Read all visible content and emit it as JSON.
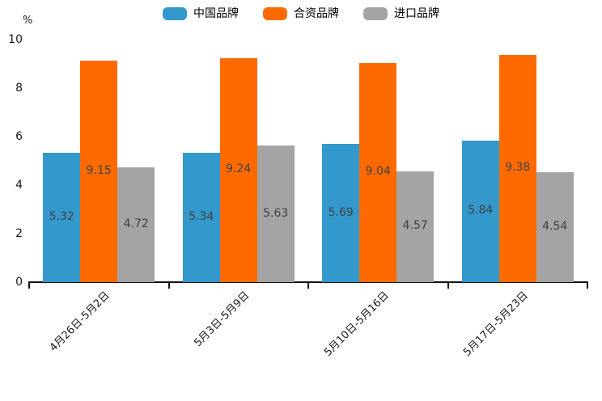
{
  "chart_data": {
    "type": "bar",
    "title": "",
    "xlabel": "",
    "ylabel": "%",
    "ylim": [
      0,
      10
    ],
    "yticks": [
      0,
      2,
      4,
      6,
      8,
      10
    ],
    "grid": false,
    "legend_position": "top",
    "categories": [
      "4月26日-5月2日",
      "5月3日-5月9日",
      "5月10日-5月16日",
      "5月17日-5月23日"
    ],
    "series": [
      {
        "name": "中国品牌",
        "color": "#3398cc",
        "values": [
          5.32,
          5.34,
          5.69,
          5.84
        ]
      },
      {
        "name": "合资品牌",
        "color": "#ff6a00",
        "values": [
          9.15,
          9.24,
          9.04,
          9.38
        ]
      },
      {
        "name": "进口品牌",
        "color": "#a4a4a4",
        "values": [
          4.72,
          5.63,
          4.57,
          4.54
        ]
      }
    ],
    "value_labels_shown": true,
    "colors": {
      "axis": "#111111",
      "tick_text": "#1a1a1a",
      "bar_value_text": "#404040",
      "background": "#ffffff"
    }
  }
}
